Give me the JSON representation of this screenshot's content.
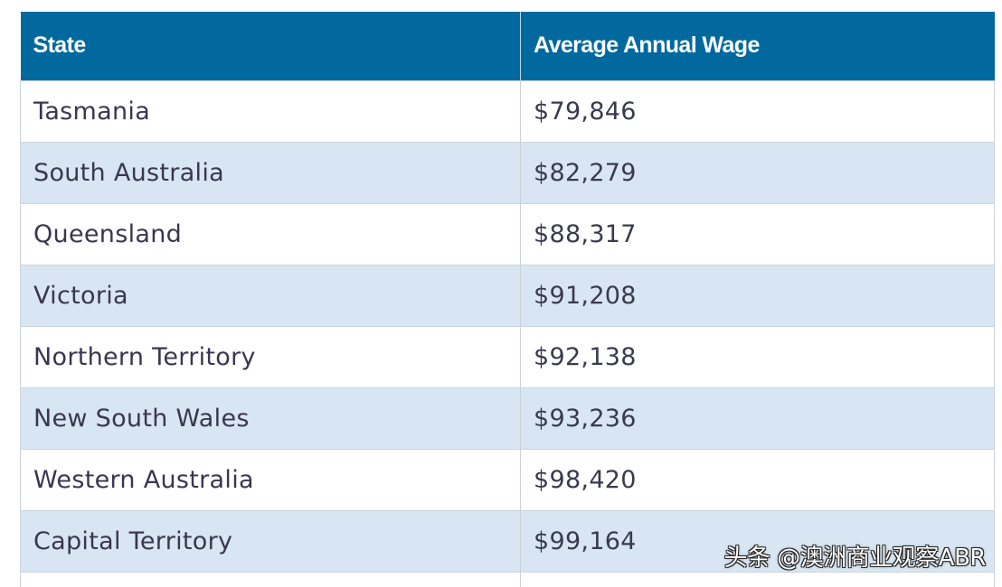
{
  "chart_data": {
    "type": "table",
    "columns": [
      "State",
      "Average Annual Wage"
    ],
    "rows": [
      [
        "Tasmania",
        "$79,846"
      ],
      [
        "South Australia",
        "$82,279"
      ],
      [
        "Queensland",
        "$88,317"
      ],
      [
        "Victoria",
        "$91,208"
      ],
      [
        "Northern Territory",
        "$92,138"
      ],
      [
        "New South Wales",
        "$93,236"
      ],
      [
        "Western Australia",
        "$98,420"
      ],
      [
        "Capital Territory",
        "$99,164"
      ]
    ],
    "values": [
      79846,
      82279,
      88317,
      91208,
      92138,
      93236,
      98420,
      99164
    ]
  },
  "colors": {
    "header_bg": "#02699f",
    "header_text": "#ffffff",
    "row_alt_bg": "#d7e6f2",
    "row_bg": "#ffffff",
    "border": "#c9d3dc"
  },
  "watermark": "头条 @澳洲商业观察ABR"
}
